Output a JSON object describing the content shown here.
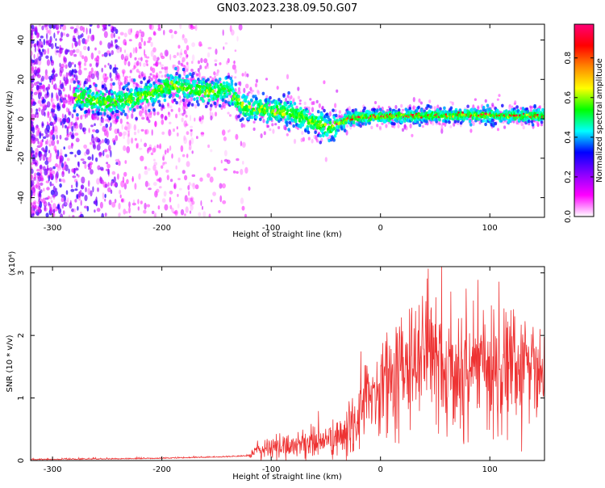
{
  "figure": {
    "title": "GN03.2023.238.09.50.G07"
  },
  "chart_data": [
    {
      "type": "heatmap",
      "xlabel": "Height of straight line (km)",
      "ylabel": "Frequency (Hz)",
      "xlim": [
        -320,
        150
      ],
      "ylim": [
        -50,
        48
      ],
      "x_ticks": [
        -300,
        -200,
        -100,
        0,
        100
      ],
      "y_ticks": [
        -40,
        -20,
        0,
        20,
        40
      ],
      "colorbar": {
        "label": "Normalized spectral amplitude",
        "range": [
          0,
          0.97
        ],
        "ticks": [
          0.0,
          0.2,
          0.4,
          0.6,
          0.8
        ],
        "colormap": [
          "#ffffff",
          "#ff00ff",
          "#8800ff",
          "#0000ff",
          "#00ffff",
          "#00ff00",
          "#ffff00",
          "#ff8800",
          "#ff0000",
          "#ff0077"
        ]
      },
      "ridge": {
        "x": [
          -275,
          -250,
          -225,
          -200,
          -190,
          -175,
          -160,
          -150,
          -140,
          -125,
          -110,
          -100,
          -90,
          -75,
          -60,
          -45,
          -40,
          -30,
          -15,
          0,
          25,
          50,
          75,
          100,
          125,
          150
        ],
        "y": [
          11,
          8,
          10,
          15,
          17,
          15,
          14,
          14,
          15,
          6,
          5,
          4,
          4,
          2,
          -2,
          -5,
          -3,
          0,
          1,
          1,
          1.5,
          1.5,
          1.8,
          2,
          1.5,
          1.5
        ]
      }
    },
    {
      "type": "line",
      "xlabel": "Height of straight line (km)",
      "ylabel": "SNR (10 * v/v)",
      "y_multiplier": "(x10⁴)",
      "xlim": [
        -320,
        150
      ],
      "ylim": [
        0,
        3.1
      ],
      "x_ticks": [
        -300,
        -200,
        -100,
        0,
        100
      ],
      "y_ticks": [
        0,
        1,
        2,
        3
      ],
      "color": "#ee3333",
      "series": [
        {
          "x": [
            -320,
            -250,
            -200,
            -150,
            -120,
            -110,
            -100,
            -90,
            -80,
            -70,
            -60,
            -50,
            -40,
            -30,
            -25,
            -20,
            -15,
            -10,
            -5,
            0,
            10,
            20,
            30,
            40,
            50,
            60,
            70,
            80,
            90,
            100,
            110,
            120,
            130,
            140,
            150
          ],
          "y": [
            0.01,
            0.02,
            0.03,
            0.05,
            0.07,
            0.18,
            0.2,
            0.22,
            0.25,
            0.28,
            0.3,
            0.32,
            0.35,
            0.4,
            0.6,
            0.8,
            0.9,
            1.0,
            1.05,
            1.2,
            1.4,
            1.5,
            1.6,
            1.65,
            1.6,
            1.5,
            1.5,
            1.45,
            1.5,
            1.55,
            1.45,
            1.5,
            1.4,
            1.45,
            1.4
          ]
        }
      ]
    }
  ]
}
